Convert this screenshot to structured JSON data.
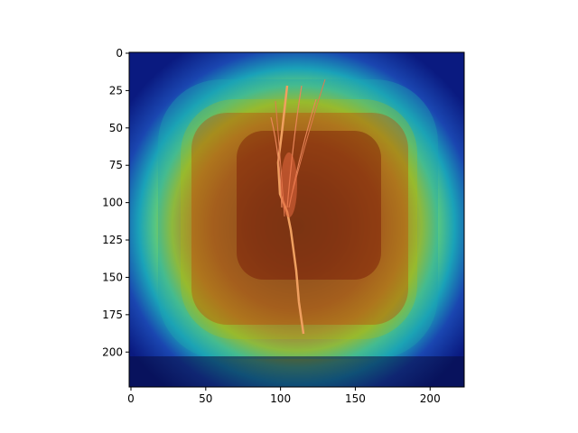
{
  "chart_data": {
    "type": "heatmap",
    "title": "",
    "xlabel": "",
    "ylabel": "",
    "xlim": [
      0,
      224
    ],
    "ylim": [
      224,
      0
    ],
    "x_ticks": [
      0,
      50,
      100,
      150,
      200
    ],
    "y_ticks": [
      0,
      25,
      50,
      75,
      100,
      125,
      150,
      175,
      200
    ],
    "x_tick_labels": [
      "0",
      "50",
      "100",
      "150",
      "200"
    ],
    "y_tick_labels": [
      "0",
      "25",
      "50",
      "75",
      "100",
      "125",
      "150",
      "175",
      "200"
    ],
    "colormap": "jet",
    "overlay": "wheat ear photograph",
    "heat_peak": {
      "x": 112,
      "y": 110
    },
    "heat_core_extent": {
      "x": [
        75,
        175
      ],
      "y": [
        50,
        160
      ]
    },
    "grid": false,
    "legend": "none"
  }
}
